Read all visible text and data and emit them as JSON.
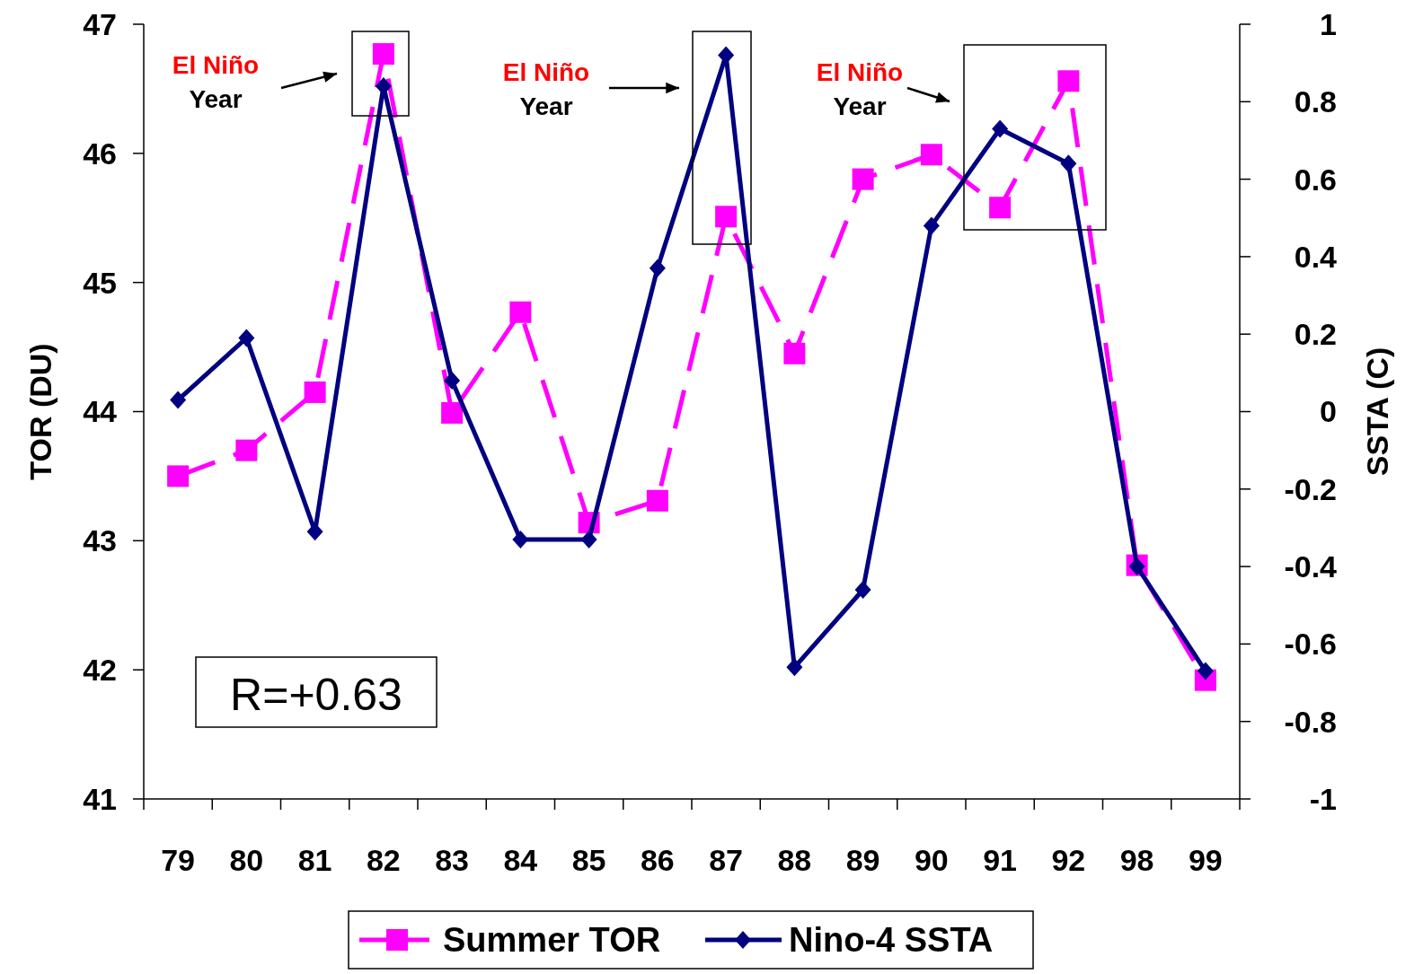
{
  "chart_data": {
    "type": "line",
    "categories": [
      "79",
      "80",
      "81",
      "82",
      "83",
      "84",
      "85",
      "86",
      "87",
      "88",
      "89",
      "90",
      "91",
      "92",
      "98",
      "99"
    ],
    "series": [
      {
        "name": "Summer TOR",
        "color": "#ff00ff",
        "marker": "square",
        "line_style": "dashed",
        "values": [
          43.5,
          43.7,
          44.15,
          46.77,
          43.99,
          44.77,
          43.14,
          43.31,
          45.51,
          44.45,
          45.8,
          45.99,
          45.58,
          46.56,
          42.81,
          41.92
        ]
      },
      {
        "name": "Nino-4 SSTA",
        "color": "#000080",
        "marker": "diamond",
        "line_style": "solid",
        "axis": "y2",
        "values": [
          0.03,
          0.19,
          -0.31,
          0.84,
          0.08,
          -0.33,
          -0.33,
          0.37,
          0.92,
          -0.66,
          -0.46,
          0.48,
          0.73,
          0.64,
          -0.4,
          -0.67
        ]
      }
    ],
    "ylabel": "TOR (DU)",
    "y2label": "SSTA (C)",
    "ylim": [
      41,
      47
    ],
    "yticks": [
      41,
      42,
      43,
      44,
      45,
      46,
      47
    ],
    "y2lim": [
      -1,
      1
    ],
    "y2ticks": [
      -1,
      -0.8,
      -0.6,
      -0.4,
      -0.2,
      0,
      0.2,
      0.4,
      0.6,
      0.8,
      1
    ],
    "legend": "bottom",
    "grid": false,
    "annotations": [
      "El Niño\nYear",
      "El Niño\nYear",
      "El Niño\nYear",
      "R=+0.63"
    ]
  }
}
